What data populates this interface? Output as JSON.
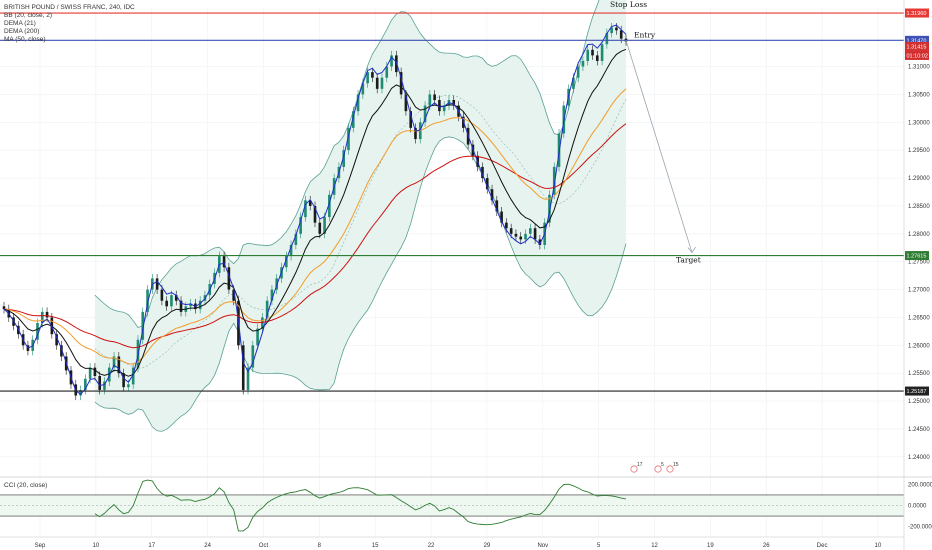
{
  "header": {
    "symbol_line": "BRITISH POUND / SWISS FRANC, 240, IDC",
    "indicators": [
      "BB (20, close, 2)",
      "DEMA (21)",
      "DEMA (200)",
      "MA (50, close)"
    ]
  },
  "sub_pane": {
    "label": "CCI (20, close)"
  },
  "colors": {
    "stop": "#e53935",
    "entry": "#3f51b5",
    "target": "#2e7d32",
    "support": "#222222",
    "bb": "#5aa198",
    "bb_fill": "#e6f3ee",
    "dema21": "#1f2fc8",
    "dema200": "#cc1111",
    "ma50": "#f39c2a",
    "ema_black": "#111111",
    "up": "#1e8b72",
    "down": "#1b1b1b",
    "cci": "#2e7d32",
    "cci_band": "#eef7f0",
    "grid": "#eef0f3"
  },
  "chart_data": {
    "type": "candlestick",
    "ylim": [
      1.238,
      1.3205
    ],
    "y_ticks": [
      "1.31000",
      "1.30500",
      "1.30000",
      "1.29500",
      "1.29000",
      "1.28500",
      "1.28000",
      "1.27500",
      "1.27000",
      "1.26500",
      "1.26000",
      "1.25500",
      "1.25000",
      "1.24500",
      "1.24000"
    ],
    "x_ticks": [
      "Sep",
      "10",
      "17",
      "24",
      "Oct",
      "8",
      "15",
      "22",
      "29",
      "Nov",
      "5",
      "12",
      "19",
      "26",
      "Dec",
      "10"
    ],
    "levels": [
      {
        "name": "stop",
        "label": "Stop Loss",
        "price": 1.3196,
        "badge": "1.31960"
      },
      {
        "name": "entry",
        "label": "Entry",
        "price": 1.3147,
        "badge": "1.31470"
      },
      {
        "name": "target",
        "label": "Target",
        "price": 1.2761,
        "badge": "1.27615"
      },
      {
        "name": "support",
        "label": "",
        "price": 1.2518,
        "badge": "1.25187"
      }
    ],
    "current_badges": [
      "1.31415",
      "01:10:02"
    ],
    "closes": [
      1.2665,
      1.265,
      1.2635,
      1.262,
      1.26,
      1.259,
      1.261,
      1.264,
      1.266,
      1.265,
      1.262,
      1.26,
      1.258,
      1.2555,
      1.253,
      1.251,
      1.252,
      1.254,
      1.256,
      1.2545,
      1.252,
      1.2535,
      1.256,
      1.258,
      1.255,
      1.2525,
      1.253,
      1.256,
      1.261,
      1.266,
      1.27,
      1.272,
      1.27,
      1.268,
      1.267,
      1.269,
      1.268,
      1.266,
      1.267,
      1.2675,
      1.2665,
      1.268,
      1.269,
      1.271,
      1.273,
      1.276,
      1.274,
      1.27,
      1.268,
      1.26,
      1.252,
      1.256,
      1.26,
      1.263,
      1.265,
      1.268,
      1.27,
      1.272,
      1.274,
      1.276,
      1.278,
      1.28,
      1.283,
      1.286,
      1.285,
      1.282,
      1.28,
      1.283,
      1.287,
      1.29,
      1.292,
      1.295,
      1.299,
      1.302,
      1.305,
      1.307,
      1.309,
      1.308,
      1.306,
      1.308,
      1.31,
      1.312,
      1.309,
      1.305,
      1.302,
      1.299,
      1.297,
      1.3,
      1.303,
      1.305,
      1.304,
      1.302,
      1.303,
      1.304,
      1.303,
      1.301,
      1.299,
      1.296,
      1.294,
      1.292,
      1.29,
      1.288,
      1.286,
      1.284,
      1.282,
      1.281,
      1.28,
      1.2795,
      1.279,
      1.28,
      1.281,
      1.279,
      1.278,
      1.282,
      1.287,
      1.292,
      1.298,
      1.303,
      1.306,
      1.308,
      1.31,
      1.311,
      1.313,
      1.312,
      1.311,
      1.314,
      1.316,
      1.317,
      1.3165,
      1.315,
      1.3145
    ],
    "cci_ylim": [
      -250,
      250
    ],
    "cci_ticks": [
      "200.0000",
      "0.0000",
      "-200.0000"
    ],
    "events": [
      "17",
      "5",
      "15"
    ]
  }
}
